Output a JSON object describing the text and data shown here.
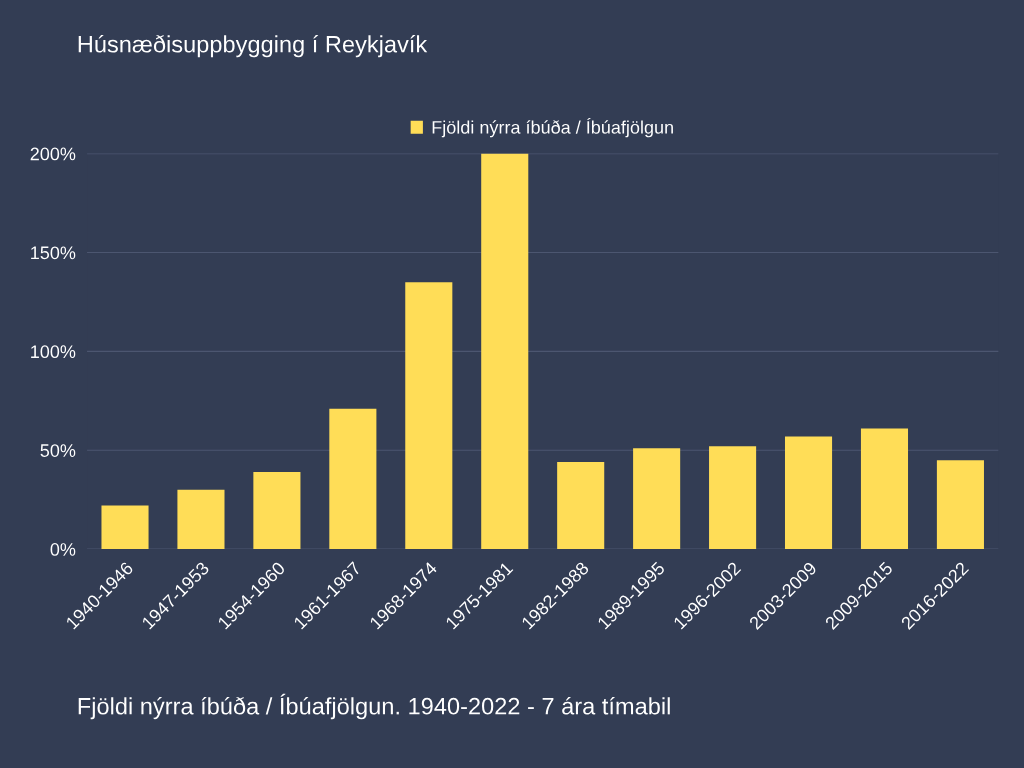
{
  "chart_data": {
    "type": "bar",
    "title": "Húsnæðisuppbygging í Reykjavík",
    "categories": [
      "1940-1946",
      "1947-1953",
      "1954-1960",
      "1961-1967",
      "1968-1974",
      "1975-1981",
      "1982-1988",
      "1989-1995",
      "1996-2002",
      "2003-2009",
      "2009-2015",
      "2016-2022"
    ],
    "series": [
      {
        "name": "Fjöldi nýrra íbúða / Íbúafjölgun",
        "color": "#ffdd57",
        "values": [
          22,
          30,
          39,
          71,
          135,
          200,
          44,
          51,
          52,
          57,
          61,
          45
        ]
      }
    ],
    "ylim": [
      0,
      200
    ],
    "yticks": [
      {
        "value": 0,
        "label": "0%"
      },
      {
        "value": 50,
        "label": "50%"
      },
      {
        "value": 100,
        "label": "100%"
      },
      {
        "value": 150,
        "label": "150%"
      },
      {
        "value": 200,
        "label": "200%"
      }
    ],
    "grid": "y",
    "legend": "top",
    "annotations": [
      "Fjöldi nýrra íbúða / Íbúafjölgun. 1940-2022 - 7 ára tímabil"
    ]
  }
}
